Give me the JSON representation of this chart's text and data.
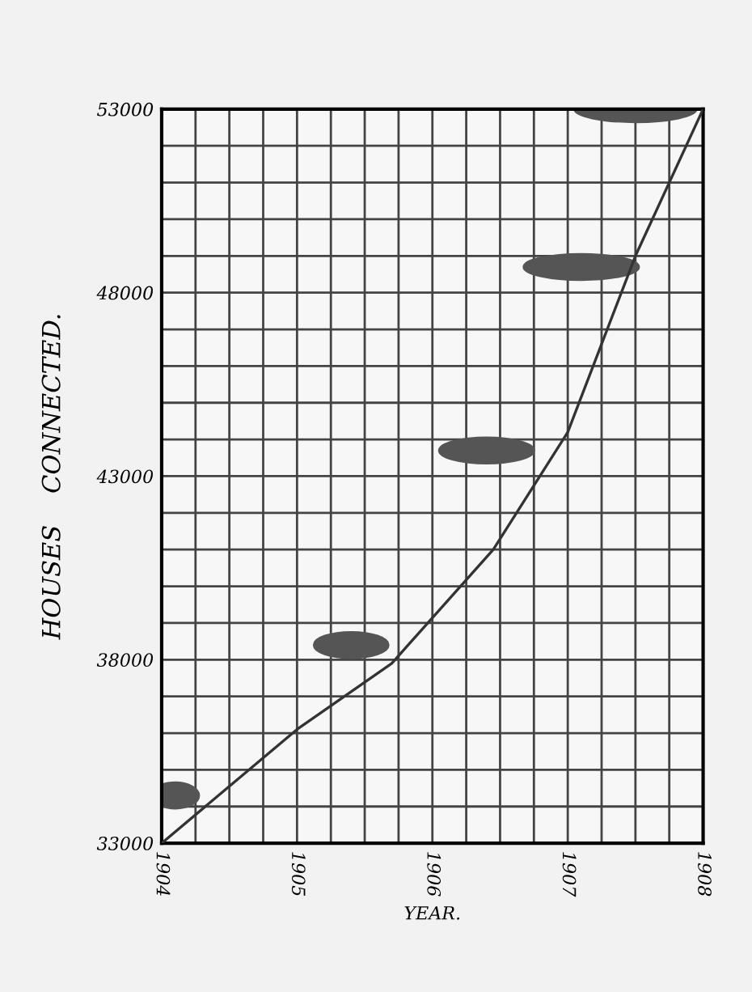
{
  "chart_data": {
    "type": "line",
    "xlabel": "YEAR.",
    "ylabel": "HOUSES    CONNECTED.",
    "x": [
      1904,
      1905,
      1905.7,
      1906.45,
      1907,
      1907.5,
      1908
    ],
    "series": [
      {
        "color": "#333333",
        "values": [
          33000,
          36100,
          37900,
          41000,
          44200,
          49000,
          53000
        ]
      }
    ],
    "xlim": [
      1904,
      1908
    ],
    "ylim": [
      33000,
      53000
    ],
    "xticks": [
      1904,
      {
        "value": 1904.25,
        "label": null
      },
      {
        "value": 1904.5,
        "label": null
      },
      {
        "value": 1904.75,
        "label": null
      },
      1905,
      {
        "value": 1905.25,
        "label": null
      },
      {
        "value": 1905.5,
        "label": null
      },
      {
        "value": 1905.75,
        "label": null
      },
      1906,
      {
        "value": 1906.25,
        "label": null
      },
      {
        "value": 1906.5,
        "label": null
      },
      {
        "value": 1906.75,
        "label": null
      },
      1907,
      {
        "value": 1907.25,
        "label": null
      },
      {
        "value": 1907.5,
        "label": null
      },
      {
        "value": 1907.75,
        "label": null
      },
      1908
    ],
    "yticks": [
      33000,
      {
        "value": 34000,
        "label": null
      },
      {
        "value": 35000,
        "label": null
      },
      {
        "value": 36000,
        "label": null
      },
      {
        "value": 37000,
        "label": null
      },
      38000,
      {
        "value": 39000,
        "label": null
      },
      {
        "value": 40000,
        "label": null
      },
      {
        "value": 41000,
        "label": null
      },
      {
        "value": 42000,
        "label": null
      },
      43000,
      {
        "value": 44000,
        "label": null
      },
      {
        "value": 45000,
        "label": null
      },
      {
        "value": 46000,
        "label": null
      },
      {
        "value": 47000,
        "label": null
      },
      48000,
      {
        "value": 49000,
        "label": null
      },
      {
        "value": 50000,
        "label": null
      },
      {
        "value": 51000,
        "label": null
      },
      {
        "value": 52000,
        "label": null
      },
      53000
    ],
    "grid": true,
    "marker": "none",
    "line_style": "solid"
  }
}
